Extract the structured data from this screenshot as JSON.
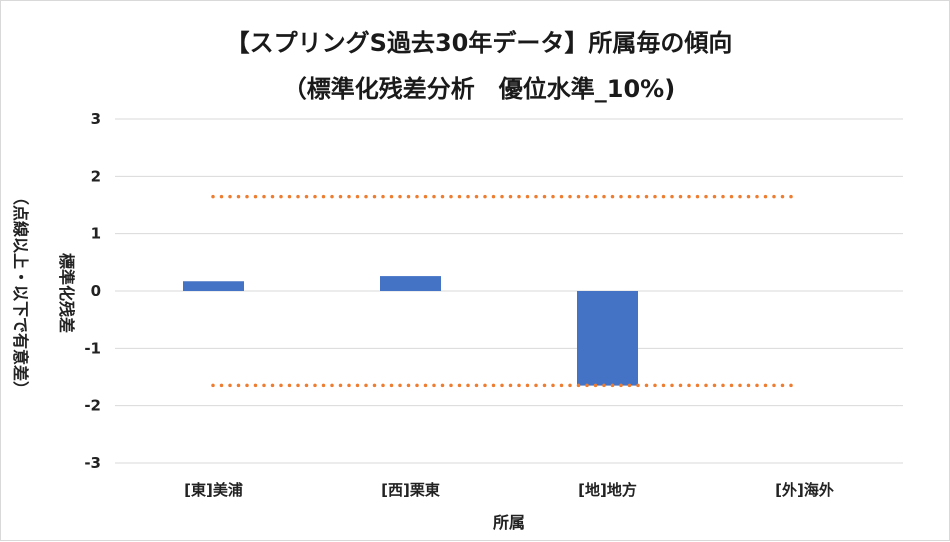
{
  "chart_data": {
    "type": "bar",
    "title": "【スプリングS過去30年データ】所属毎の傾向",
    "subtitle": "（標準化残差分析　優位水準_10%)",
    "xlabel": "所属",
    "ylabel": "標準化残差",
    "ylabel_note": "（点線以上・以下で有意差）",
    "categories": [
      "[東]美浦",
      "[西]栗東",
      "[地]地方",
      "[外]海外"
    ],
    "values": [
      0.17,
      0.26,
      -1.65,
      0
    ],
    "ylim": [
      -3,
      3
    ],
    "yticks": [
      "3",
      "2",
      "1",
      "0",
      "-1",
      "-2",
      "-3"
    ],
    "threshold_upper": 1.645,
    "threshold_lower": -1.645,
    "grid": true,
    "colors": {
      "bar": "#4472c4",
      "threshold": "#ed7d31",
      "grid": "#d9d9d9"
    }
  }
}
